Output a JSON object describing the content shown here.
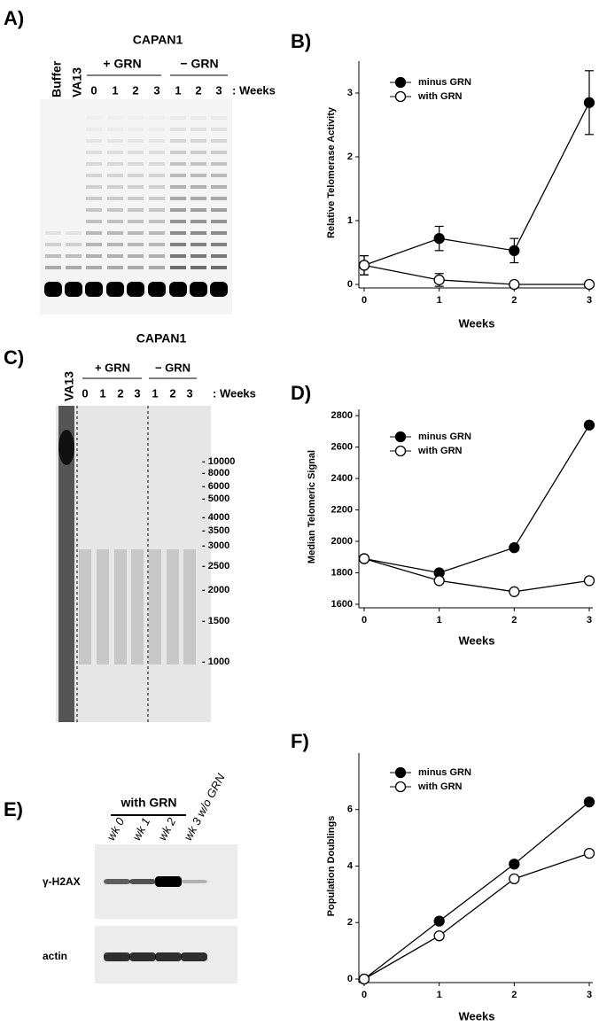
{
  "chart_data": [
    {
      "type": "line",
      "label": "B)",
      "y_label": "Relative Telomerase Activity",
      "x_label": "Weeks",
      "x": [
        0,
        1,
        2,
        3
      ],
      "xlim": [
        0,
        3
      ],
      "xticks": [
        0,
        1,
        2,
        3
      ],
      "ylim": [
        0,
        3.5
      ],
      "yticks": [
        0,
        1,
        2,
        3
      ],
      "series": [
        {
          "name": "minus GRN",
          "color": "#000000",
          "values": [
            0.3,
            0.72,
            0.53,
            2.85
          ],
          "errors": [
            0.15,
            0.19,
            0.19,
            0.5
          ]
        },
        {
          "name": "with GRN",
          "color": "#ffffff",
          "values": [
            0.3,
            0.07,
            0,
            0
          ],
          "errors": [
            0.15,
            0.1,
            0,
            0
          ]
        }
      ]
    },
    {
      "type": "line",
      "label": "D)",
      "y_label": "Median Telomeric Signal",
      "x_label": "Weeks",
      "x": [
        0,
        1,
        2,
        3
      ],
      "xlim": [
        0,
        3
      ],
      "xticks": [
        0,
        1,
        2,
        3
      ],
      "ylim": [
        1600,
        2840
      ],
      "yticks": [
        1600,
        1800,
        2000,
        2200,
        2400,
        2600,
        2800
      ],
      "series": [
        {
          "name": "minus GRN",
          "color": "#000000",
          "values": [
            1890,
            1800,
            1960,
            2740
          ]
        },
        {
          "name": "with GRN",
          "color": "#ffffff",
          "values": [
            1890,
            1750,
            1680,
            1750
          ]
        }
      ]
    },
    {
      "type": "line",
      "label": "F)",
      "y_label": "Population Doublings",
      "x_label": "Weeks",
      "x": [
        0,
        1,
        2,
        3
      ],
      "xlim": [
        0,
        3
      ],
      "xticks": [
        0,
        1,
        2,
        3
      ],
      "ylim": [
        0,
        8
      ],
      "yticks": [
        0,
        2,
        4,
        6
      ],
      "series": [
        {
          "name": "minus GRN",
          "color": "#000000",
          "values": [
            0,
            2.05,
            4.07,
            6.27
          ]
        },
        {
          "name": "with GRN",
          "color": "#ffffff",
          "values": [
            0,
            1.53,
            3.55,
            4.45
          ]
        }
      ]
    }
  ],
  "panel_a": {
    "label": "A)",
    "title": "CAPAN1",
    "plus": "+ GRN",
    "minus": "− GRN",
    "lanes": [
      "Buffer",
      "VA13"
    ],
    "weeks": [
      "0",
      "1",
      "2",
      "3",
      "1",
      "2",
      "3"
    ],
    "weeks_label": ": Weeks"
  },
  "panel_c": {
    "label": "C)",
    "title": "CAPAN1",
    "plus": "+ GRN",
    "minus": "− GRN",
    "lane": "VA13",
    "weeks": [
      "0",
      "1",
      "2",
      "3",
      "1",
      "2",
      "3"
    ],
    "weeks_label": ": Weeks",
    "markers": [
      "- 10000",
      "- 8000",
      "- 6000",
      "- 5000",
      "- 4000",
      "- 3500",
      "- 3000",
      "- 2500",
      "- 2000",
      "- 1500",
      "- 1000"
    ]
  },
  "panel_e": {
    "label": "E)",
    "group": "with GRN",
    "lanes": [
      "wk 0",
      "wk 1",
      "wk 2",
      "wk 3 w/o GRN"
    ],
    "rows": [
      "γ-H2AX",
      "actin"
    ]
  }
}
